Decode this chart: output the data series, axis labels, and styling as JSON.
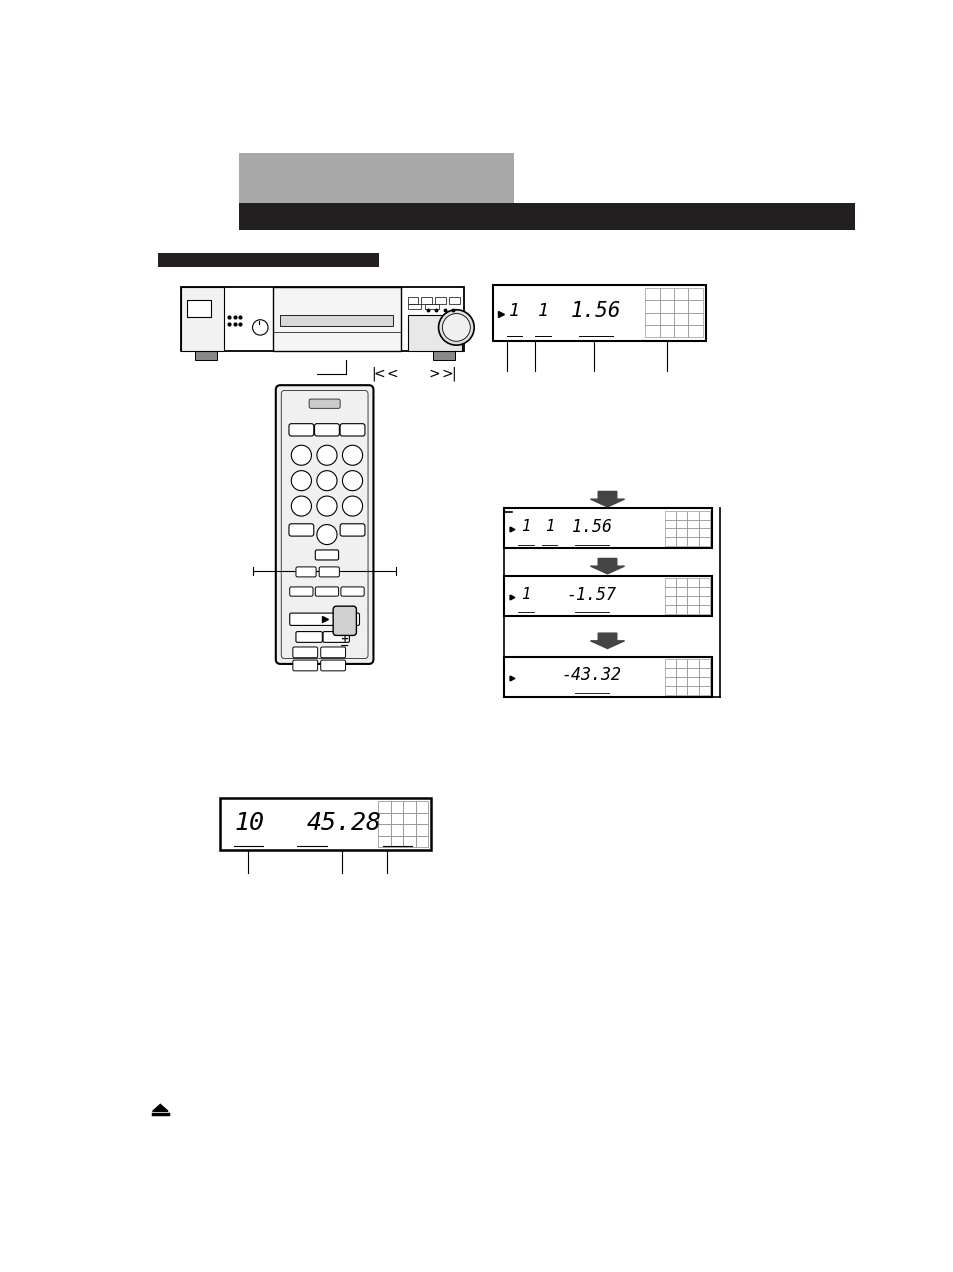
{
  "bg_color": "#ffffff",
  "header_gray": "#a8a8a8",
  "header_black": "#231f20",
  "page_width": 9.54,
  "page_height": 12.72,
  "dpi": 100
}
